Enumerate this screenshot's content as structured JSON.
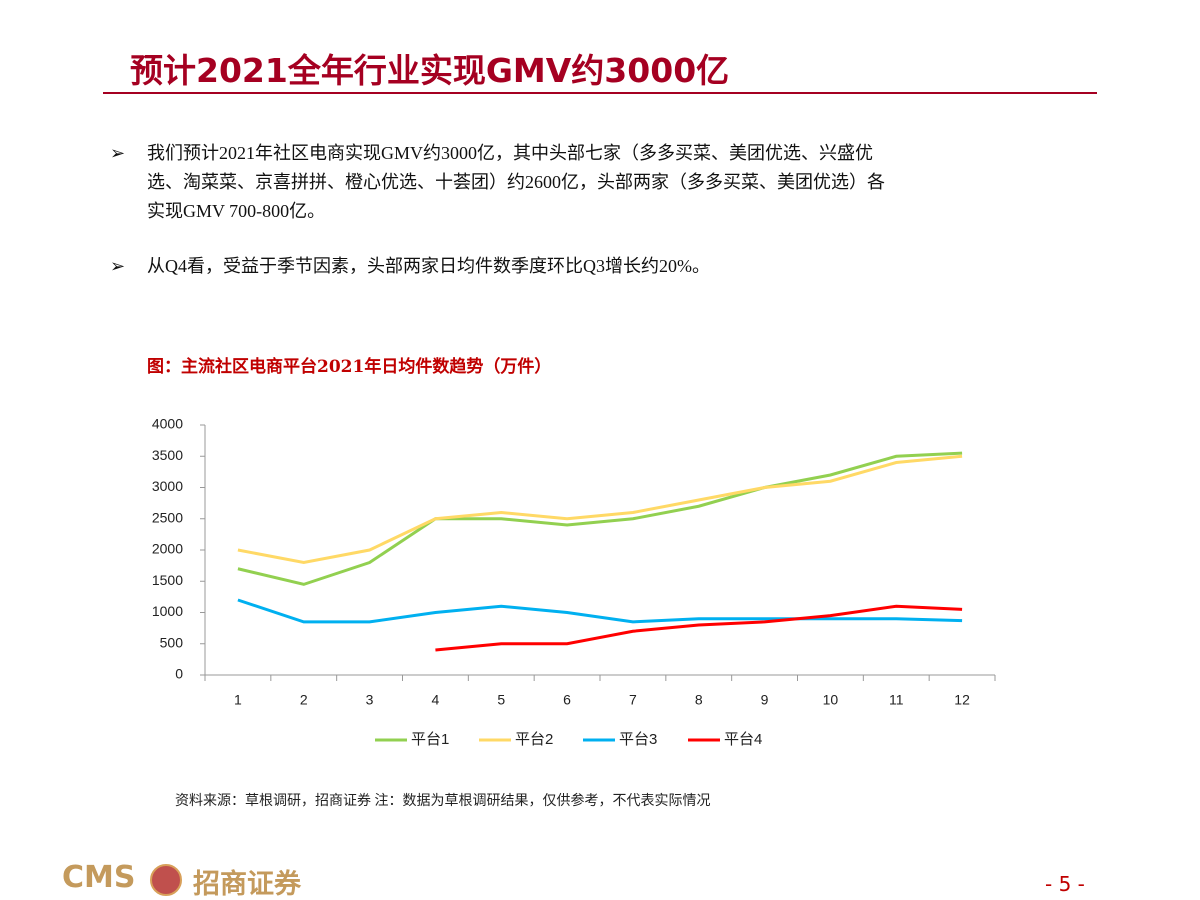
{
  "header": {
    "title": "预计2021全年行业实现GMV约3000亿"
  },
  "bullets": [
    {
      "marker": "➢",
      "lines": [
        "我们预计2021年社区电商实现GMV约3000亿，其中头部七家（多多买菜、美团优选、兴盛优",
        "选、淘菜菜、京喜拼拼、橙心优选、十荟团）约2600亿，头部两家（多多买菜、美团优选）各",
        "实现GMV 700-800亿。"
      ]
    },
    {
      "marker": "➢",
      "lines": [
        "从Q4看，受益于季节因素，头部两家日均件数季度环比Q3增长约20%。"
      ]
    }
  ],
  "chart_data": {
    "type": "line",
    "title": "图：主流社区电商平台2021年日均件数趋势（万件）",
    "categories": [
      "1",
      "2",
      "3",
      "4",
      "5",
      "6",
      "7",
      "8",
      "9",
      "10",
      "11",
      "12"
    ],
    "series": [
      {
        "name": "平台1",
        "color": "#92d050",
        "values": [
          1700,
          1450,
          1800,
          2500,
          2500,
          2400,
          2500,
          2700,
          3000,
          3200,
          3500,
          3550
        ]
      },
      {
        "name": "平台2",
        "color": "#ffd966",
        "values": [
          2000,
          1800,
          2000,
          2500,
          2600,
          2500,
          2600,
          2800,
          3000,
          3100,
          3400,
          3500
        ]
      },
      {
        "name": "平台3",
        "color": "#00b0f0",
        "values": [
          1200,
          850,
          850,
          1000,
          1100,
          1000,
          850,
          900,
          900,
          900,
          900,
          870
        ]
      },
      {
        "name": "平台4",
        "color": "#ff0000",
        "values": [
          null,
          null,
          null,
          400,
          500,
          500,
          700,
          800,
          850,
          950,
          1100,
          1050
        ]
      }
    ],
    "ylim": [
      0,
      4000
    ],
    "yticks": [
      0,
      500,
      1000,
      1500,
      2000,
      2500,
      3000,
      3500,
      4000
    ],
    "grid": false,
    "legend": "bottom"
  },
  "source": "资料来源：草根调研，招商证券 注：数据为草根调研结果，仅供参考，不代表实际情况",
  "footer": {
    "logo": "CMS",
    "company": "招商证券",
    "page": "- 5 -"
  }
}
